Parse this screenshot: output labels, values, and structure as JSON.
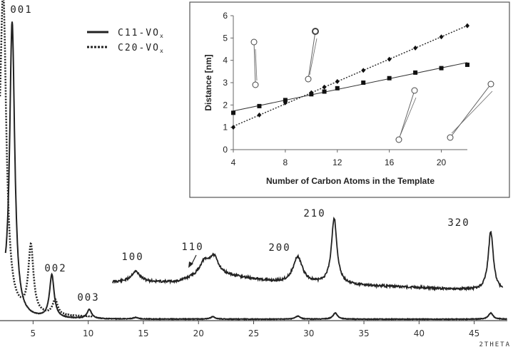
{
  "chart_data": [
    {
      "type": "line",
      "xlabel": "2THETA",
      "x_ticks": [
        5,
        10,
        15,
        20,
        25,
        30,
        35,
        40,
        45
      ],
      "xlim": [
        2,
        48
      ],
      "legend": {
        "placement": "top-center",
        "entries": [
          {
            "label": "C11-VO",
            "subscript": "x",
            "style": "solid"
          },
          {
            "label": "C20-VO",
            "subscript": "x",
            "style": "dotted"
          }
        ]
      },
      "series": [
        {
          "name": "C11-VOx",
          "style": "solid",
          "peaks": [
            {
              "x": 3.1,
              "height": 0.97
            },
            {
              "x": 6.7,
              "height": 0.14
            },
            {
              "x": 10.1,
              "height": 0.03
            },
            {
              "x": 14.3,
              "height": 0.005
            },
            {
              "x": 21.3,
              "height": 0.008
            },
            {
              "x": 29.0,
              "height": 0.01
            },
            {
              "x": 32.4,
              "height": 0.02
            },
            {
              "x": 46.5,
              "height": 0.02
            }
          ]
        },
        {
          "name": "C20-VOx",
          "style": "dotted",
          "peaks": [
            {
              "x": 2.3,
              "height": 0.98
            },
            {
              "x": 4.8,
              "height": 0.22
            },
            {
              "x": 7.0,
              "height": 0.05
            }
          ]
        },
        {
          "name": "C11-VOx (magnified)",
          "style": "solid",
          "peaks": [
            {
              "x": 14.3,
              "height": 0.045
            },
            {
              "x": 20.5,
              "height": 0.05
            },
            {
              "x": 21.4,
              "height": 0.07
            },
            {
              "x": 29.0,
              "height": 0.11
            },
            {
              "x": 32.3,
              "height": 0.28
            },
            {
              "x": 46.5,
              "height": 0.25
            }
          ]
        }
      ],
      "annotations": [
        "001",
        "002",
        "003",
        "100",
        "110",
        "200",
        "210",
        "320"
      ]
    },
    {
      "type": "line",
      "xlabel": "Number of Carbon Atoms in the Template",
      "ylabel": "Distance [nm]",
      "xlim": [
        4,
        22
      ],
      "ylim": [
        0,
        6
      ],
      "x_ticks": [
        4,
        8,
        12,
        16,
        20
      ],
      "y_ticks": [
        0,
        1,
        2,
        3,
        4,
        5,
        6
      ],
      "series": [
        {
          "name": "squares",
          "style": "solid",
          "marker": "square",
          "x": [
            4,
            6,
            8,
            10,
            11,
            12,
            14,
            16,
            18,
            20,
            22
          ],
          "y": [
            1.65,
            1.95,
            2.22,
            2.48,
            2.6,
            2.75,
            3.0,
            3.2,
            3.45,
            3.65,
            3.8
          ]
        },
        {
          "name": "diamonds",
          "style": "dotted",
          "marker": "diamond",
          "x": [
            4,
            6,
            8,
            10,
            11,
            12,
            14,
            16,
            18,
            20,
            22
          ],
          "y": [
            1.0,
            1.55,
            2.1,
            2.55,
            2.8,
            3.05,
            3.55,
            4.05,
            4.55,
            5.05,
            5.55
          ]
        }
      ]
    }
  ]
}
